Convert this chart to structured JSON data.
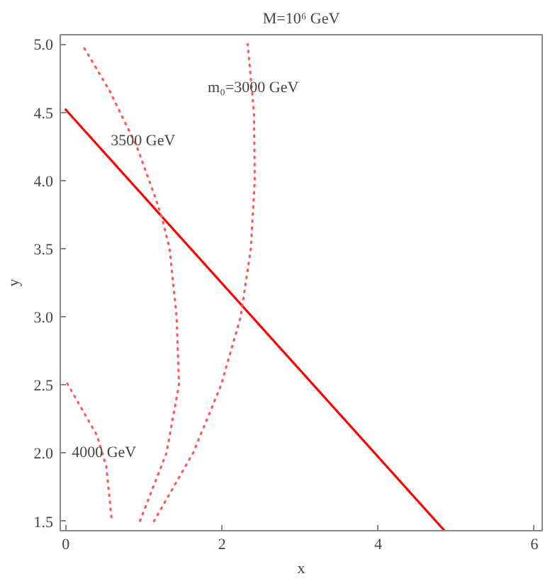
{
  "chart_data": {
    "type": "line",
    "title": "M=10⁶ GeV",
    "xlabel": "x",
    "ylabel": "y",
    "xlim": [
      -0.07,
      6.1
    ],
    "ylim": [
      1.43,
      5.07
    ],
    "xticks": [
      0,
      2,
      4,
      6
    ],
    "yticks": [
      {
        "value": 1.5,
        "label": "1.5"
      },
      {
        "value": 2.0,
        "label": "2.0"
      },
      {
        "value": 2.5,
        "label": "2.5"
      },
      {
        "value": 3.0,
        "label": "3.0"
      },
      {
        "value": 3.5,
        "label": "3.5"
      },
      {
        "value": 4.0,
        "label": "4.0"
      },
      {
        "value": 4.5,
        "label": "4.5"
      },
      {
        "value": 5.0,
        "label": "5.0"
      }
    ],
    "grid": false,
    "marker": "none",
    "series": [
      {
        "color": "#ff0000",
        "line_style": "solid",
        "x": [
          0.0,
          4.85
        ],
        "values": [
          4.52,
          1.43
        ]
      },
      {
        "color": "#ff5a5a",
        "line_style": "dotted",
        "x": [
          1.13,
          1.63,
          1.99,
          2.24,
          2.37,
          2.42,
          2.41,
          2.33
        ],
        "values": [
          1.5,
          2.0,
          2.5,
          3.0,
          3.5,
          4.0,
          4.5,
          5.0
        ]
      },
      {
        "color": "#ff5a5a",
        "line_style": "dotted",
        "x": [
          0.24,
          0.56,
          0.91,
          1.15,
          1.24,
          1.33,
          1.42,
          1.45,
          1.29,
          0.95
        ],
        "values": [
          4.97,
          4.66,
          4.25,
          3.87,
          3.71,
          3.5,
          3.0,
          2.5,
          2.0,
          1.5
        ]
      },
      {
        "color": "#ff5a5a",
        "line_style": "dotted",
        "x": [
          0.02,
          0.4,
          0.52,
          0.59
        ],
        "values": [
          2.51,
          2.13,
          1.9,
          1.5
        ]
      }
    ],
    "annotations": [
      {
        "text": "m₀=3000 GeV",
        "x": 2.4,
        "y": 4.68
      },
      {
        "text": "3500 GeV",
        "x": 0.99,
        "y": 4.29
      },
      {
        "text": "4000 GeV",
        "x": 0.49,
        "y": 2.0
      }
    ]
  }
}
